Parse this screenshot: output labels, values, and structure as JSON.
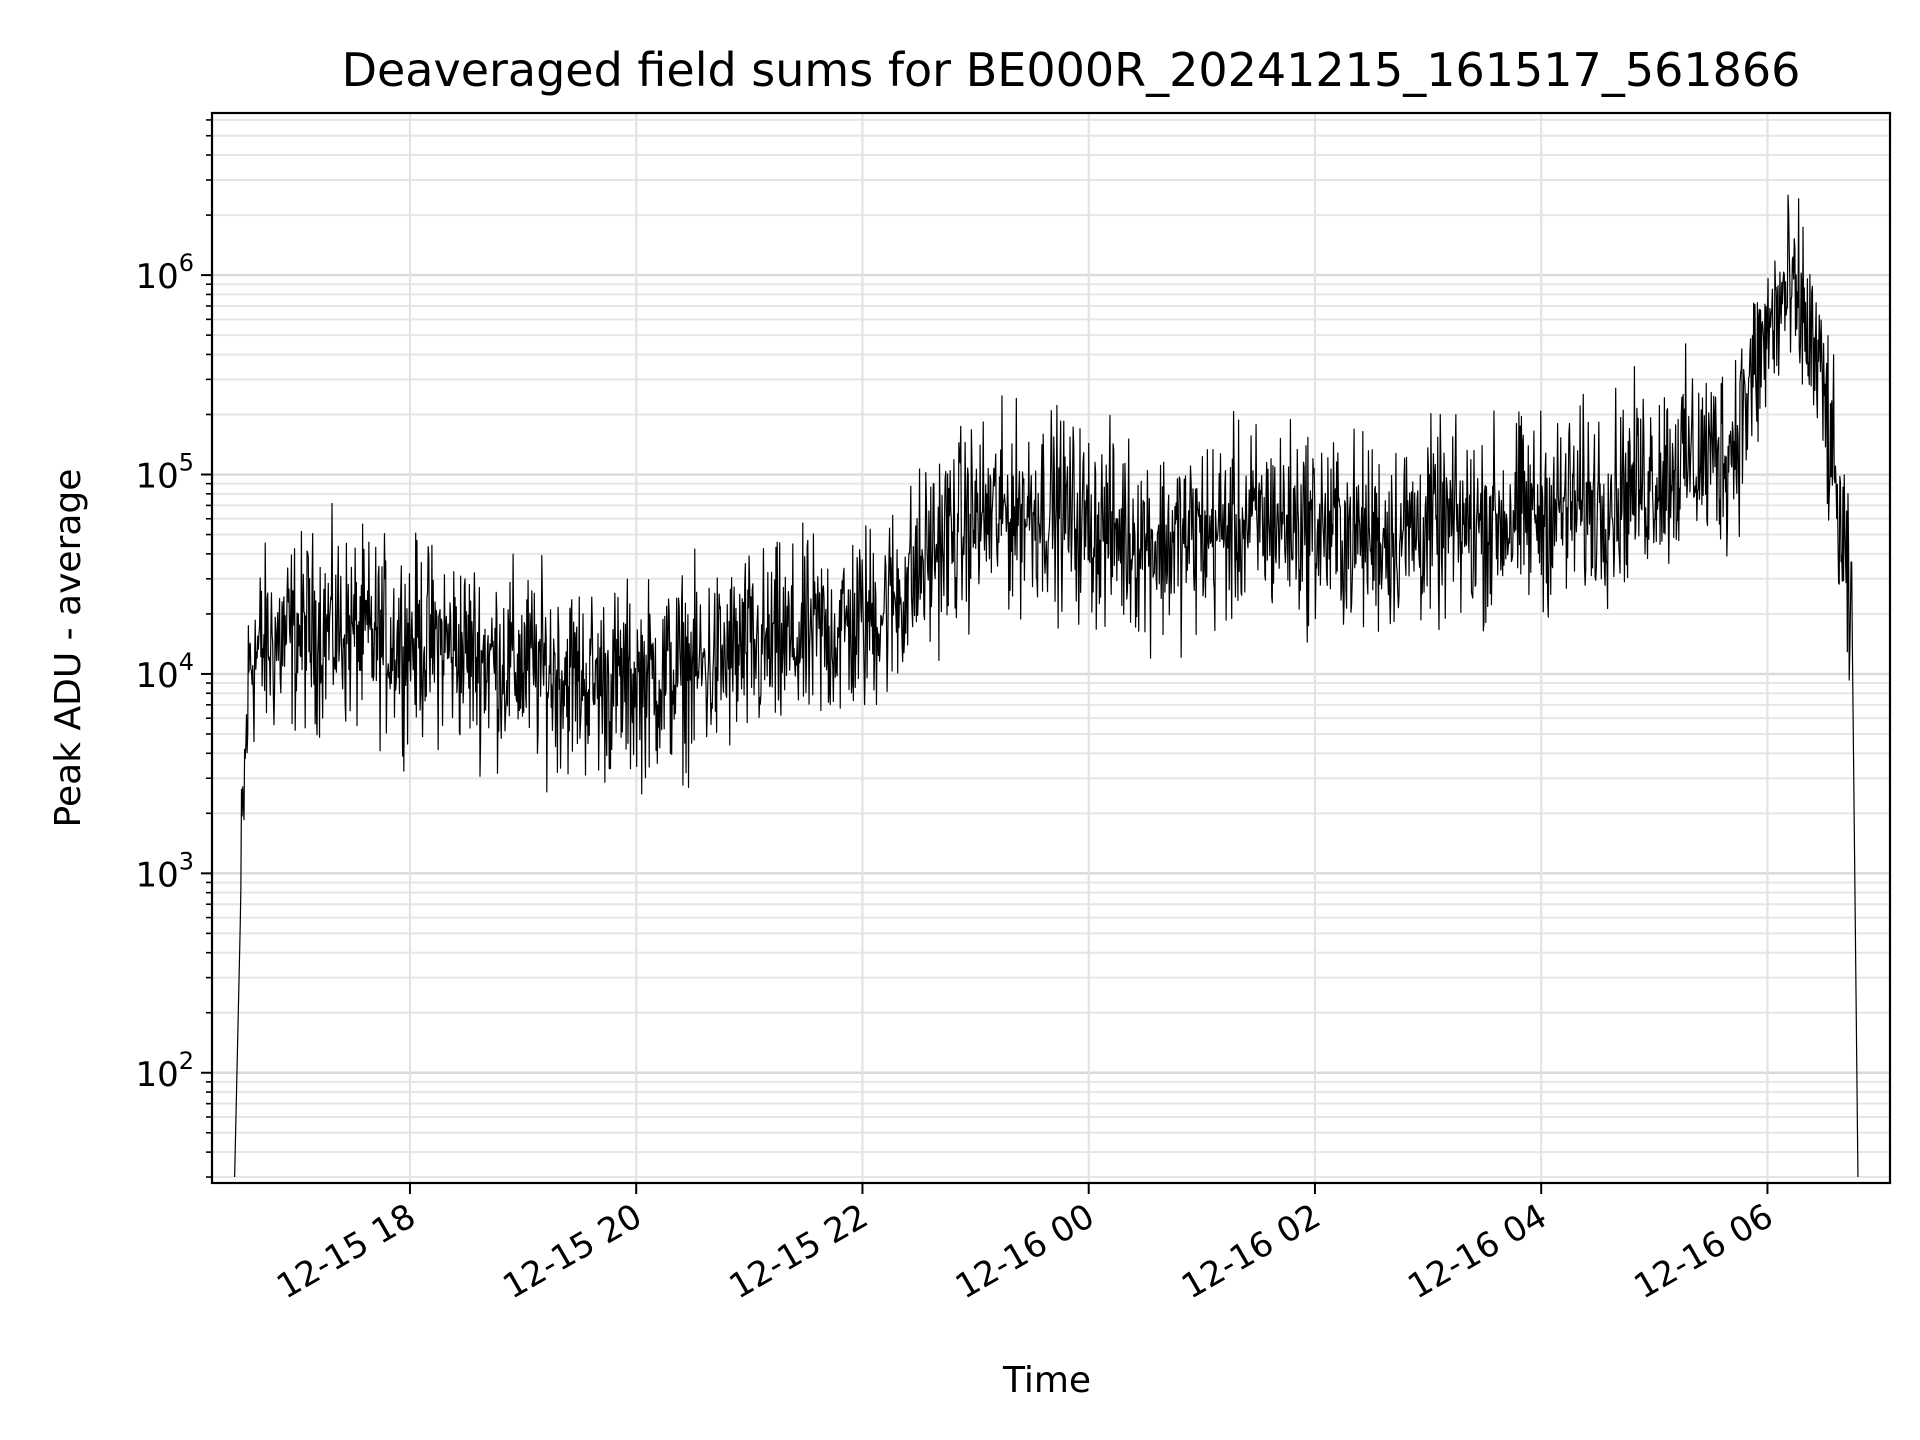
{
  "chart_data": {
    "type": "line",
    "title": "Deaveraged field sums for BE000R_20241215_161517_561866",
    "xlabel": "Time",
    "ylabel": "Peak ADU - average",
    "x_tick_labels": [
      "12-15 18",
      "12-15 20",
      "12-15 22",
      "12-16 00",
      "12-16 02",
      "12-16 04",
      "12-16 06"
    ],
    "x_ticks": [
      "2024-12-15 18:00",
      "2024-12-15 20:00",
      "2024-12-15 22:00",
      "2024-12-16 00:00",
      "2024-12-16 02:00",
      "2024-12-16 04:00",
      "2024-12-16 06:00"
    ],
    "xlim": [
      "2024-12-15 16:15",
      "2024-12-16 07:05"
    ],
    "y_scale": "log",
    "ylim": [
      28,
      6500000
    ],
    "y_ticks": [
      100,
      1000,
      10000,
      100000,
      1000000
    ],
    "y_tick_labels": [
      {
        "base": "10",
        "exp": "2"
      },
      {
        "base": "10",
        "exp": "3"
      },
      {
        "base": "10",
        "exp": "4"
      },
      {
        "base": "10",
        "exp": "5"
      },
      {
        "base": "10",
        "exp": "6"
      }
    ],
    "grid": true,
    "line_color": "#000000",
    "series": [
      {
        "x": [
          "2024-12-15 16:27",
          "2024-12-15 16:31",
          "2024-12-15 16:35",
          "2024-12-15 16:45",
          "2024-12-15 17:00",
          "2024-12-15 17:20",
          "2024-12-15 17:40",
          "2024-12-15 18:00",
          "2024-12-15 18:20",
          "2024-12-15 18:40",
          "2024-12-15 19:00",
          "2024-12-15 19:20",
          "2024-12-15 19:40",
          "2024-12-15 20:00",
          "2024-12-15 20:20",
          "2024-12-15 20:40",
          "2024-12-15 21:00",
          "2024-12-15 21:20",
          "2024-12-15 21:40",
          "2024-12-15 22:00",
          "2024-12-15 22:20",
          "2024-12-15 22:40",
          "2024-12-15 23:00",
          "2024-12-15 23:20",
          "2024-12-15 23:40",
          "2024-12-16 00:00",
          "2024-12-16 00:20",
          "2024-12-16 00:40",
          "2024-12-16 01:00",
          "2024-12-16 01:20",
          "2024-12-16 01:40",
          "2024-12-16 02:00",
          "2024-12-16 02:20",
          "2024-12-16 02:40",
          "2024-12-16 03:00",
          "2024-12-16 03:20",
          "2024-12-16 03:40",
          "2024-12-16 04:00",
          "2024-12-16 04:20",
          "2024-12-16 04:40",
          "2024-12-16 05:00",
          "2024-12-16 05:20",
          "2024-12-16 05:40",
          "2024-12-16 06:00",
          "2024-12-16 06:10",
          "2024-12-16 06:20",
          "2024-12-16 06:30",
          "2024-12-16 06:40",
          "2024-12-16 06:45",
          "2024-12-16 06:48"
        ],
        "y": [
          30,
          1500,
          12000,
          14000,
          16000,
          17000,
          15000,
          15000,
          14000,
          12000,
          11000,
          10000,
          9000,
          9000,
          10000,
          11000,
          13000,
          14000,
          16000,
          18000,
          25000,
          45000,
          60000,
          65000,
          70000,
          55000,
          50000,
          45000,
          50000,
          55000,
          60000,
          55000,
          50000,
          50000,
          55000,
          55000,
          60000,
          65000,
          70000,
          80000,
          100000,
          120000,
          130000,
          500000,
          800000,
          600000,
          250000,
          40000,
          15000,
          30
        ]
      }
    ]
  }
}
